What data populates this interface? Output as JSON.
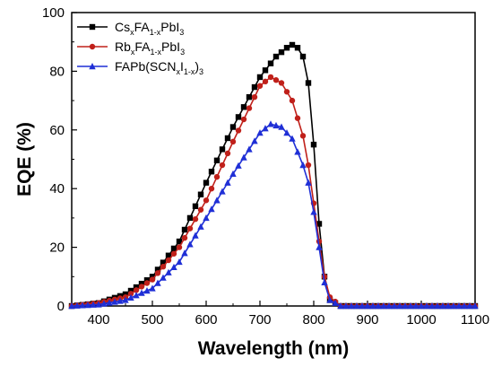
{
  "chart_data": {
    "type": "line",
    "title": "",
    "xlabel": "Wavelength (nm)",
    "ylabel": "EQE (%)",
    "xlim": [
      350,
      1100
    ],
    "ylim": [
      0,
      100
    ],
    "xticks": [
      400,
      500,
      600,
      700,
      800,
      900,
      1000,
      1100
    ],
    "yticks": [
      0,
      20,
      40,
      60,
      80,
      100
    ],
    "grid": false,
    "legend_position": "top-left",
    "series": [
      {
        "name_parts": [
          [
            "Cs",
            ""
          ],
          [
            "x",
            "sub"
          ],
          [
            "FA",
            ""
          ],
          [
            "1-x",
            "sub"
          ],
          [
            "PbI",
            ""
          ],
          [
            "3",
            "sub"
          ]
        ],
        "color": "#000000",
        "marker": "square",
        "x": [
          350,
          400,
          450,
          500,
          550,
          600,
          650,
          700,
          730,
          750,
          760,
          770,
          780,
          790,
          800,
          810,
          820,
          830,
          850,
          900,
          1000,
          1100
        ],
        "y": [
          0,
          1,
          4,
          10,
          22,
          42,
          61,
          78,
          85,
          88,
          89,
          88,
          85,
          76,
          55,
          28,
          10,
          2,
          0,
          0,
          0,
          0
        ]
      },
      {
        "name_parts": [
          [
            "Rb",
            ""
          ],
          [
            "x",
            "sub"
          ],
          [
            "FA",
            ""
          ],
          [
            "1-x",
            "sub"
          ],
          [
            "PbI",
            ""
          ],
          [
            "3",
            "sub"
          ]
        ],
        "color": "#c0201a",
        "marker": "circle",
        "x": [
          350,
          400,
          450,
          500,
          550,
          600,
          650,
          700,
          720,
          740,
          760,
          780,
          790,
          800,
          810,
          820,
          830,
          850,
          900,
          1000,
          1100
        ],
        "y": [
          0,
          1,
          3,
          9,
          20,
          36,
          56,
          75,
          78,
          76,
          70,
          58,
          48,
          35,
          22,
          10,
          3,
          0,
          0,
          0,
          0
        ]
      },
      {
        "name_parts": [
          [
            "FAPb(SCN",
            ""
          ],
          [
            "x",
            "sub"
          ],
          [
            "I",
            ""
          ],
          [
            "1-x",
            "sub"
          ],
          [
            ")",
            ""
          ],
          [
            "3",
            "sub"
          ]
        ],
        "color": "#1f2fd6",
        "marker": "triangle",
        "x": [
          350,
          400,
          450,
          500,
          550,
          600,
          650,
          700,
          720,
          740,
          760,
          780,
          790,
          800,
          810,
          820,
          830,
          850,
          900,
          1000,
          1100
        ],
        "y": [
          0,
          0.5,
          2,
          6,
          15,
          30,
          45,
          59,
          62,
          61,
          57,
          48,
          42,
          32,
          20,
          8,
          2,
          0,
          0,
          0,
          0
        ]
      }
    ]
  }
}
